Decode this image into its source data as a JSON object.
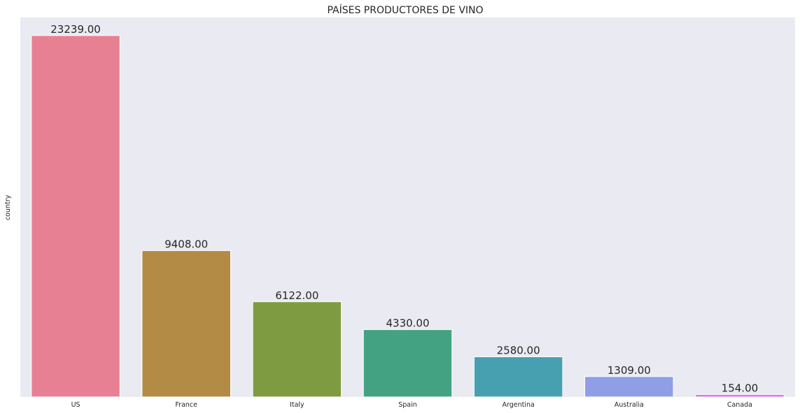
{
  "chart_data": {
    "type": "bar",
    "title": "PAÍSES PRODUCTORES DE VINO",
    "xlabel": "",
    "ylabel": "country",
    "categories": [
      "US",
      "France",
      "Italy",
      "Spain",
      "Argentina",
      "Australia",
      "Canada"
    ],
    "values": [
      23239,
      9408,
      6122,
      4330,
      2580,
      1309,
      154
    ],
    "data_labels": [
      "23239.00",
      "9408.00",
      "6122.00",
      "4330.00",
      "2580.00",
      "1309.00",
      "154.00"
    ],
    "colors": [
      "#e88093",
      "#b38b44",
      "#7e9b42",
      "#43a282",
      "#47a0b0",
      "#8e9fe6",
      "#db6fe6"
    ],
    "ylim": [
      0,
      24401
    ],
    "grid": false,
    "y_ticks_visible": false,
    "background": "#eaeaf2"
  }
}
